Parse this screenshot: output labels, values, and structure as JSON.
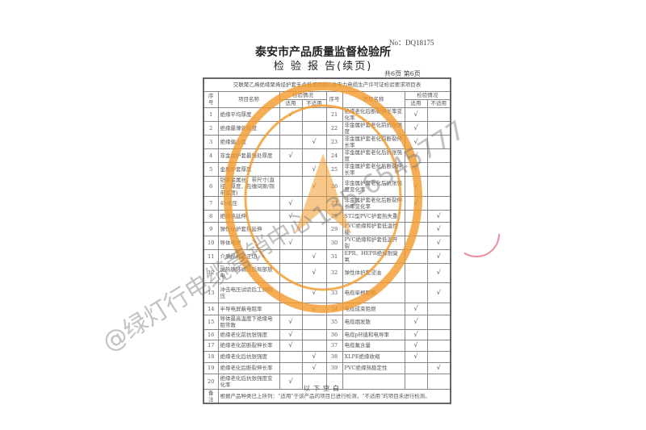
{
  "report_no": "No：DQ18175",
  "institute": "泰安市产品质量监督检验所",
  "report_title": "检 验 报 告(续页)",
  "page_info": "共6页 第6页",
  "table": {
    "title": "交联聚乙烯绝缘聚烯烃护套无卤低烟阻燃C类电力电缆生产许可证检验要求项目表",
    "headers": {
      "seq": "序号",
      "name": "项目名称",
      "status": "检验情况",
      "applicable": "适用",
      "not_applicable": "不适用"
    },
    "check_mark": "√",
    "left": [
      {
        "no": "1",
        "name": "绝缘平均厚度",
        "status": "applicable"
      },
      {
        "no": "2",
        "name": "绝缘最薄处厚度",
        "status": ""
      },
      {
        "no": "3",
        "name": "绝缘偏心度",
        "status": "not_applicable"
      },
      {
        "no": "4",
        "name": "非金属护套最薄处厚度",
        "status": "applicable"
      },
      {
        "no": "5",
        "name": "金属护套厚度",
        "status": "not_applicable"
      },
      {
        "no": "6",
        "name": "铠装金属丝、带尺寸(直径、厚度、包缠间隙/铜带宽度)",
        "status": "not_applicable"
      },
      {
        "no": "7",
        "name": "4h电压",
        "status": "applicable"
      },
      {
        "no": "8",
        "name": "绝缘热延伸",
        "status": "applicable"
      },
      {
        "no": "9",
        "name": "弹性体护套热延伸",
        "status": ""
      },
      {
        "no": "10",
        "name": "导体电阻",
        "status": "applicable"
      },
      {
        "no": "11",
        "name": "介质损耗角正切",
        "status": "not_applicable"
      },
      {
        "no": "12",
        "name": "加热循环试验后局部放电",
        "status": "not_applicable"
      },
      {
        "no": "13",
        "name": "冲击电压试验后工频耐压",
        "status": "not_applicable"
      },
      {
        "no": "14",
        "name": "半导电屏蔽电阻率",
        "status": "not_applicable"
      },
      {
        "no": "15",
        "name": "导体最高温度下绝缘电阻常数",
        "status": "applicable"
      },
      {
        "no": "16",
        "name": "绝缘老化前抗张强度",
        "status": "applicable"
      },
      {
        "no": "17",
        "name": "绝缘老化前断裂伸长率",
        "status": "applicable"
      },
      {
        "no": "18",
        "name": "绝缘老化后抗张强度",
        "status": "not_applicable"
      },
      {
        "no": "19",
        "name": "绝缘老化后断裂伸长率",
        "status": "not_applicable"
      },
      {
        "no": "20",
        "name": "绝缘老化后抗张强度变化率",
        "status": "applicable"
      }
    ],
    "right": [
      {
        "no": "21",
        "name": "绝缘老化后断裂伸长率变化率",
        "status": "applicable"
      },
      {
        "no": "22",
        "name": "非金属护套老化前抗张强度",
        "status": "applicable"
      },
      {
        "no": "23",
        "name": "非金属护套老化前断裂伸长率",
        "status": "applicable"
      },
      {
        "no": "24",
        "name": "非金属护套老化后抗张强度",
        "status": "applicable"
      },
      {
        "no": "25",
        "name": "非金属护套老化后断裂伸长率",
        "status": "applicable"
      },
      {
        "no": "26",
        "name": "非金属护套老化后抗张强度变化率",
        "status": "applicable"
      },
      {
        "no": "27",
        "name": "非金属护套老化后断裂伸长率变化率",
        "status": "applicable"
      },
      {
        "no": "28",
        "name": "ST2型PVC护套热失重",
        "status": "not_applicable"
      },
      {
        "no": "29",
        "name": "PVC绝缘和护套低温性能",
        "status": "not_applicable"
      },
      {
        "no": "30",
        "name": "PVC绝缘和护套低温开裂",
        "status": "not_applicable"
      },
      {
        "no": "31",
        "name": "EPR、HEPR绝缘耐臭氧",
        "status": "not_applicable"
      },
      {
        "no": "32",
        "name": "弹性体护套浸油",
        "status": "not_applicable"
      },
      {
        "no": "33",
        "name": "电缆单根阻燃",
        "status": "not_applicable"
      },
      {
        "no": "34",
        "name": "电缆成束阻燃",
        "status": "applicable"
      },
      {
        "no": "35",
        "name": "电缆烟发散",
        "status": "applicable"
      },
      {
        "no": "36",
        "name": "电缆pH值和电导率",
        "status": "applicable"
      },
      {
        "no": "37",
        "name": "电缆氟含量",
        "status": "applicable"
      },
      {
        "no": "38",
        "name": "XLPE绝缘收缩",
        "status": "applicable"
      },
      {
        "no": "39",
        "name": "PVC绝缘热稳定性",
        "status": "not_applicable"
      },
      {
        "no": "",
        "name": "",
        "status": ""
      }
    ],
    "remark_label": "备注",
    "remark": "根据产品种类已上所列：“适用”于该产品的项目已进行检测，“不适用”的项目未进行检测。"
  },
  "footer": "以下空白",
  "seal_text": "泰安市产品质量监督检验所 Tai'an Institute of Supervision & Inspection on Product Quality",
  "watermark": {
    "text": "@绿灯行电缆营销中心",
    "phone": "135-6545777"
  },
  "colors": {
    "seal": "#f39a2b",
    "red_seal": "#e0405a",
    "watermark": "#8a8a8a"
  }
}
